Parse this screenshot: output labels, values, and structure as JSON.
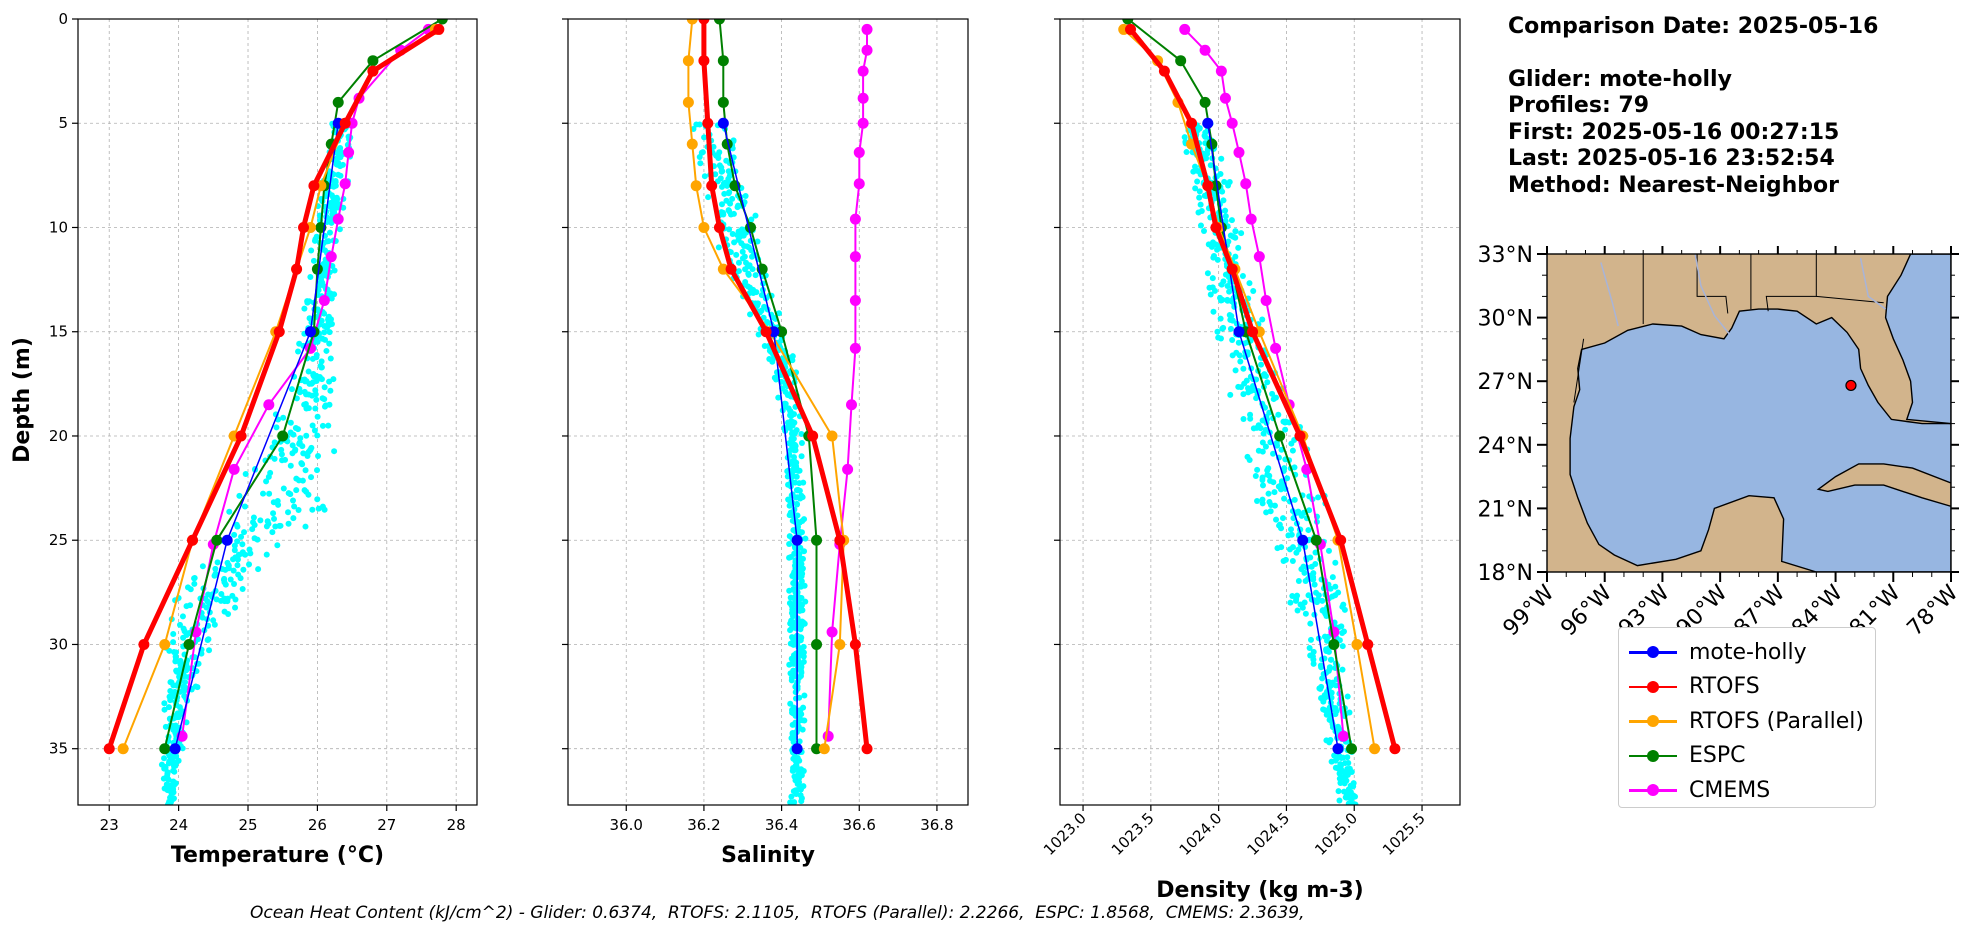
{
  "info": {
    "comparison_date": "Comparison Date: 2025-05-16",
    "glider": "Glider: mote-holly",
    "profiles": "Profiles: 79",
    "first": "First: 2025-05-16 00:27:15",
    "last": "Last: 2025-05-16 23:52:54",
    "method": "Method: Nearest-Neighbor"
  },
  "footnote": "Ocean Heat Content (kJ/cm^2) - Glider: 0.6374,  RTOFS: 2.1105,  RTOFS (Parallel): 2.2266,  ESPC: 1.8568,  CMEMS: 2.3639,",
  "colors": {
    "mote-holly": "#0000ff",
    "RTOFS": "#ff0000",
    "RTOFS (Parallel)": "#ffa500",
    "ESPC": "#008000",
    "CMEMS": "#ff00ff",
    "glider_scatter": "#00ffff",
    "ocean": "#97b6e1",
    "land": "#d2b48c"
  },
  "legend": [
    {
      "label": "mote-holly",
      "color": "#0000ff"
    },
    {
      "label": "RTOFS",
      "color": "#ff0000"
    },
    {
      "label": "RTOFS (Parallel)",
      "color": "#ffa500"
    },
    {
      "label": "ESPC",
      "color": "#008000"
    },
    {
      "label": "CMEMS",
      "color": "#ff00ff"
    }
  ],
  "chart_data": [
    {
      "type": "line",
      "xlabel": "Temperature (°C)",
      "ylabel": "Depth (m)",
      "xlim": [
        22.55,
        28.3
      ],
      "ylim": [
        37.7,
        0
      ],
      "xticks": [
        23,
        24,
        25,
        26,
        27,
        28
      ],
      "yticks": [
        0,
        5,
        10,
        15,
        20,
        25,
        30,
        35
      ],
      "grid": true,
      "scatter": {
        "name": "mote-holly",
        "color": "#00ffff",
        "centerline": [
          [
            5,
            26.4
          ],
          [
            10,
            26.15
          ],
          [
            15,
            26.0
          ],
          [
            18,
            25.95
          ],
          [
            20,
            25.7
          ],
          [
            22,
            25.6
          ],
          [
            24,
            25.35
          ],
          [
            26,
            24.8
          ],
          [
            28,
            24.4
          ],
          [
            30,
            24.15
          ],
          [
            33,
            24.0
          ],
          [
            35,
            23.9
          ],
          [
            37.7,
            23.85
          ]
        ],
        "spread": [
          [
            5,
            0.2
          ],
          [
            15,
            0.25
          ],
          [
            20,
            0.55
          ],
          [
            24,
            0.85
          ],
          [
            28,
            0.55
          ],
          [
            32,
            0.25
          ],
          [
            37.7,
            0.1
          ]
        ]
      },
      "series": [
        {
          "name": "mote-holly",
          "color": "#0000ff",
          "width": 1.5,
          "y": [
            5,
            15,
            25,
            35
          ],
          "x": [
            26.3,
            25.9,
            24.7,
            23.95
          ]
        },
        {
          "name": "RTOFS",
          "color": "#ff0000",
          "width": 5,
          "y": [
            0.5,
            2.5,
            5,
            8,
            10,
            12,
            15,
            20,
            25,
            30,
            35
          ],
          "x": [
            27.75,
            26.8,
            26.4,
            25.95,
            25.8,
            25.7,
            25.45,
            24.9,
            24.2,
            23.5,
            23.0
          ]
        },
        {
          "name": "RTOFS (Parallel)",
          "color": "#ffa500",
          "width": 2,
          "y": [
            0.5,
            2.5,
            5,
            8,
            10,
            12,
            15,
            20,
            25,
            30,
            35
          ],
          "x": [
            27.7,
            26.8,
            26.4,
            26.05,
            25.9,
            25.7,
            25.4,
            24.8,
            24.2,
            23.8,
            23.2
          ]
        },
        {
          "name": "ESPC",
          "color": "#008000",
          "width": 2,
          "y": [
            0,
            2,
            4,
            6,
            8,
            10,
            12,
            15,
            20,
            25,
            30,
            35
          ],
          "x": [
            27.8,
            26.8,
            26.3,
            26.2,
            26.1,
            26.05,
            26.0,
            25.95,
            25.5,
            24.55,
            24.15,
            23.8
          ]
        },
        {
          "name": "CMEMS",
          "color": "#ff00ff",
          "width": 2,
          "y": [
            0.5,
            1.5,
            3.8,
            5,
            6.4,
            7.9,
            9.6,
            11.4,
            13.5,
            15.8,
            18.5,
            21.6,
            25.2,
            29.4,
            34.4
          ],
          "x": [
            27.6,
            27.2,
            26.6,
            26.5,
            26.45,
            26.4,
            26.3,
            26.2,
            26.1,
            25.9,
            25.3,
            24.8,
            24.5,
            24.25,
            24.05
          ]
        }
      ]
    },
    {
      "type": "line",
      "xlabel": "Salinity",
      "ylabel": "",
      "xlim": [
        35.85,
        36.88
      ],
      "ylim": [
        37.7,
        0
      ],
      "xticks": [
        36.0,
        36.2,
        36.4,
        36.6,
        36.8
      ],
      "yticks": [
        0,
        5,
        10,
        15,
        20,
        25,
        30,
        35
      ],
      "grid": true,
      "scatter": {
        "name": "mote-holly",
        "color": "#00ffff",
        "centerline": [
          [
            5,
            36.21
          ],
          [
            8,
            36.26
          ],
          [
            10,
            36.28
          ],
          [
            13,
            36.32
          ],
          [
            16,
            36.4
          ],
          [
            20,
            36.43
          ],
          [
            25,
            36.44
          ],
          [
            30,
            36.44
          ],
          [
            35,
            36.44
          ],
          [
            37.7,
            36.44
          ]
        ],
        "spread": [
          [
            5,
            0.07
          ],
          [
            10,
            0.06
          ],
          [
            15,
            0.05
          ],
          [
            20,
            0.025
          ],
          [
            37.7,
            0.02
          ]
        ]
      },
      "series": [
        {
          "name": "mote-holly",
          "color": "#0000ff",
          "width": 1.5,
          "y": [
            5,
            15,
            25,
            35
          ],
          "x": [
            36.25,
            36.38,
            36.44,
            36.44
          ]
        },
        {
          "name": "RTOFS",
          "color": "#ff0000",
          "width": 5,
          "y": [
            0,
            2,
            5,
            8,
            10,
            12,
            15,
            20,
            25,
            30,
            35
          ],
          "x": [
            36.2,
            36.2,
            36.21,
            36.22,
            36.24,
            36.27,
            36.36,
            36.48,
            36.55,
            36.59,
            36.62
          ]
        },
        {
          "name": "RTOFS (Parallel)",
          "color": "#ffa500",
          "width": 2,
          "y": [
            0,
            2,
            4,
            6,
            8,
            10,
            12,
            15,
            20,
            25,
            30,
            35
          ],
          "x": [
            36.17,
            36.16,
            36.16,
            36.17,
            36.18,
            36.2,
            36.25,
            36.37,
            36.53,
            36.56,
            36.55,
            36.51
          ]
        },
        {
          "name": "ESPC",
          "color": "#008000",
          "width": 2,
          "y": [
            0,
            2,
            4,
            6,
            8,
            10,
            12,
            15,
            20,
            25,
            30,
            35
          ],
          "x": [
            36.24,
            36.25,
            36.25,
            36.26,
            36.28,
            36.32,
            36.35,
            36.4,
            36.47,
            36.49,
            36.49,
            36.49
          ]
        },
        {
          "name": "CMEMS",
          "color": "#ff00ff",
          "width": 2,
          "y": [
            0.5,
            1.5,
            2.5,
            3.8,
            5,
            6.4,
            7.9,
            9.6,
            11.4,
            13.5,
            15.8,
            18.5,
            21.6,
            25.2,
            29.4,
            34.4
          ],
          "x": [
            36.62,
            36.62,
            36.61,
            36.61,
            36.61,
            36.6,
            36.6,
            36.59,
            36.59,
            36.59,
            36.59,
            36.58,
            36.57,
            36.55,
            36.53,
            36.52
          ]
        }
      ]
    },
    {
      "type": "line",
      "xlabel": "Density (kg m-3)",
      "ylabel": "",
      "xlim": [
        1022.83,
        1025.78
      ],
      "ylim": [
        37.7,
        0
      ],
      "xticks": [
        1023.0,
        1023.5,
        1024.0,
        1024.5,
        1025.0,
        1025.5
      ],
      "yticks": [
        0,
        5,
        10,
        15,
        20,
        25,
        30,
        35
      ],
      "grid": true,
      "scatter": {
        "name": "mote-holly",
        "color": "#00ffff",
        "centerline": [
          [
            5,
            1023.85
          ],
          [
            10,
            1024.0
          ],
          [
            15,
            1024.15
          ],
          [
            20,
            1024.4
          ],
          [
            25,
            1024.6
          ],
          [
            30,
            1024.8
          ],
          [
            35,
            1024.9
          ],
          [
            37.7,
            1024.95
          ]
        ],
        "spread": [
          [
            5,
            0.15
          ],
          [
            15,
            0.2
          ],
          [
            22,
            0.3
          ],
          [
            28,
            0.25
          ],
          [
            33,
            0.12
          ],
          [
            37.7,
            0.08
          ]
        ]
      },
      "series": [
        {
          "name": "mote-holly",
          "color": "#0000ff",
          "width": 1.5,
          "y": [
            5,
            15,
            25,
            35
          ],
          "x": [
            1023.92,
            1024.15,
            1024.62,
            1024.88
          ]
        },
        {
          "name": "RTOFS",
          "color": "#ff0000",
          "width": 5,
          "y": [
            0.5,
            2.5,
            5,
            8,
            10,
            12,
            15,
            20,
            25,
            30,
            35
          ],
          "x": [
            1023.35,
            1023.6,
            1023.8,
            1023.92,
            1023.98,
            1024.1,
            1024.25,
            1024.6,
            1024.9,
            1025.1,
            1025.3
          ]
        },
        {
          "name": "RTOFS (Parallel)",
          "color": "#ffa500",
          "width": 2,
          "y": [
            0.5,
            2,
            4,
            6,
            8,
            10,
            12,
            15,
            20,
            25,
            30,
            35
          ],
          "x": [
            1023.3,
            1023.55,
            1023.7,
            1023.8,
            1023.92,
            1024.0,
            1024.12,
            1024.3,
            1024.62,
            1024.88,
            1025.02,
            1025.15
          ]
        },
        {
          "name": "ESPC",
          "color": "#008000",
          "width": 2,
          "y": [
            0,
            2,
            4,
            6,
            8,
            10,
            12,
            15,
            20,
            25,
            30,
            35
          ],
          "x": [
            1023.33,
            1023.72,
            1023.9,
            1023.95,
            1023.98,
            1024.02,
            1024.1,
            1024.2,
            1024.45,
            1024.72,
            1024.85,
            1024.98
          ]
        },
        {
          "name": "CMEMS",
          "color": "#ff00ff",
          "width": 2,
          "y": [
            0.5,
            1.5,
            2.5,
            3.8,
            5,
            6.4,
            7.9,
            9.6,
            11.4,
            13.5,
            15.8,
            18.5,
            21.6,
            25.2,
            29.4,
            34.4
          ],
          "x": [
            1023.75,
            1023.9,
            1024.02,
            1024.05,
            1024.1,
            1024.15,
            1024.2,
            1024.24,
            1024.3,
            1024.35,
            1024.42,
            1024.52,
            1024.65,
            1024.75,
            1024.85,
            1024.92
          ]
        }
      ]
    },
    {
      "type": "map",
      "lon_ticks": [
        "99°W",
        "96°W",
        "93°W",
        "90°W",
        "87°W",
        "84°W",
        "81°W",
        "78°W"
      ],
      "lat_ticks": [
        "18°N",
        "21°N",
        "24°N",
        "27°N",
        "30°N",
        "33°N"
      ],
      "lon_range": [
        -99,
        -78
      ],
      "lat_range": [
        18,
        33
      ],
      "glider_position": {
        "lon": -83.2,
        "lat": 26.8
      }
    }
  ]
}
